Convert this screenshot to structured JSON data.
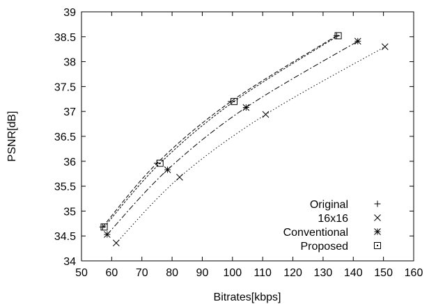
{
  "chart_data": {
    "type": "line",
    "title": "",
    "xlabel": "Bitrates[kbps]",
    "ylabel": "PSNR[dB]",
    "xlim": [
      50,
      160
    ],
    "ylim": [
      34,
      39
    ],
    "x_ticks": [
      "50",
      "60",
      "70",
      "80",
      "90",
      "100",
      "110",
      "120",
      "130",
      "140",
      "150",
      "160"
    ],
    "y_ticks": [
      "34",
      "34.5",
      "35",
      "35.5",
      "36",
      "36.5",
      "37",
      "37.5",
      "38",
      "38.5",
      "39"
    ],
    "grid": false,
    "legend_position": "bottom-right",
    "series": [
      {
        "name": "Original",
        "marker": "plus",
        "line_style": "dashed",
        "points": [
          [
            57,
            34.68
          ],
          [
            75,
            35.96
          ],
          [
            99.5,
            37.2
          ],
          [
            134.5,
            38.52
          ]
        ]
      },
      {
        "name": "16x16",
        "marker": "x",
        "line_style": "dotted",
        "points": [
          [
            61.5,
            34.36
          ],
          [
            82.5,
            35.68
          ],
          [
            111,
            36.94
          ],
          [
            150.5,
            38.3
          ]
        ]
      },
      {
        "name": "Conventional",
        "marker": "star",
        "line_style": "dash-dot",
        "points": [
          [
            58.5,
            34.53
          ],
          [
            78.5,
            35.83
          ],
          [
            104.5,
            37.08
          ],
          [
            141.5,
            38.41
          ]
        ]
      },
      {
        "name": "Proposed",
        "marker": "square",
        "line_style": "dash-dash",
        "points": [
          [
            57.5,
            34.68
          ],
          [
            76,
            35.96
          ],
          [
            100.5,
            37.2
          ],
          [
            135,
            38.52
          ]
        ]
      }
    ]
  }
}
